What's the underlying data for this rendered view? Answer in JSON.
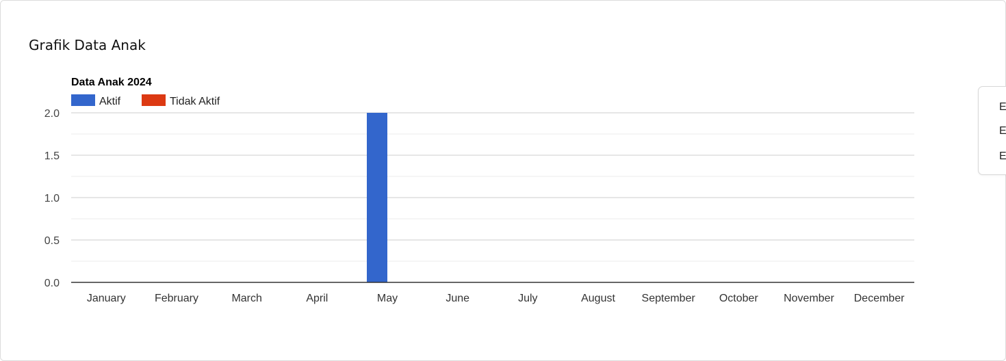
{
  "card": {
    "title": "Grafik Data Anak"
  },
  "side_menu": {
    "items": [
      "Ex",
      "Ex",
      "Ex"
    ]
  },
  "colors": {
    "aktif": "#3366cc",
    "tidak_aktif": "#dc3912",
    "grid": "#cccccc",
    "minor_grid": "#ebebeb",
    "axis": "#333333"
  },
  "chart_data": {
    "type": "bar",
    "title": "Data Anak 2024",
    "xlabel": "",
    "ylabel": "",
    "categories": [
      "January",
      "February",
      "March",
      "April",
      "May",
      "June",
      "July",
      "August",
      "September",
      "October",
      "November",
      "December"
    ],
    "series": [
      {
        "name": "Aktif",
        "values": [
          0,
          0,
          0,
          0,
          2,
          0,
          0,
          0,
          0,
          0,
          0,
          0
        ]
      },
      {
        "name": "Tidak Aktif",
        "values": [
          0,
          0,
          0,
          0,
          0,
          0,
          0,
          0,
          0,
          0,
          0,
          0
        ]
      }
    ],
    "ylim": [
      0,
      2
    ],
    "yticks": [
      "0.0",
      "0.5",
      "1.0",
      "1.5",
      "2.0"
    ],
    "grid": true,
    "legend_position": "top-left"
  }
}
